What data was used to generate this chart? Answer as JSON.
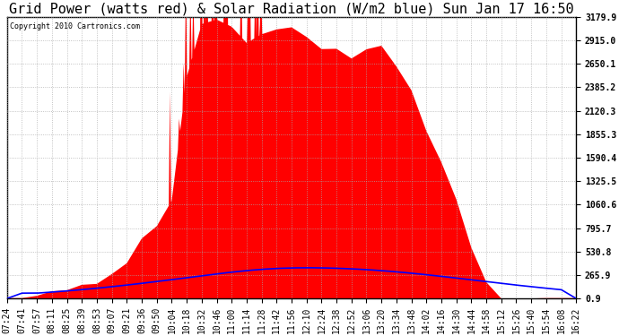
{
  "title": "Grid Power (watts red) & Solar Radiation (W/m2 blue) Sun Jan 17 16:50",
  "copyright": "Copyright 2010 Cartronics.com",
  "yticks": [
    0.9,
    265.9,
    530.8,
    795.7,
    1060.6,
    1325.5,
    1590.4,
    1855.3,
    2120.3,
    2385.2,
    2650.1,
    2915.0,
    3179.9
  ],
  "ymin": 0.9,
  "ymax": 3179.9,
  "xtick_labels": [
    "07:24",
    "07:41",
    "07:57",
    "08:11",
    "08:25",
    "08:39",
    "08:53",
    "09:07",
    "09:21",
    "09:36",
    "09:50",
    "10:04",
    "10:18",
    "10:32",
    "10:46",
    "11:00",
    "11:14",
    "11:28",
    "11:42",
    "11:56",
    "12:10",
    "12:24",
    "12:38",
    "12:52",
    "13:06",
    "13:20",
    "13:34",
    "13:48",
    "14:02",
    "14:16",
    "14:30",
    "14:44",
    "14:58",
    "15:12",
    "15:26",
    "15:40",
    "15:54",
    "16:08",
    "16:22"
  ],
  "grid_color": "#aaaaaa",
  "background_color": "#ffffff",
  "red_color": "#ff0000",
  "blue_color": "#0000ff",
  "title_fontsize": 11,
  "tick_fontsize": 7,
  "fig_width": 6.9,
  "fig_height": 3.75,
  "dpi": 100
}
